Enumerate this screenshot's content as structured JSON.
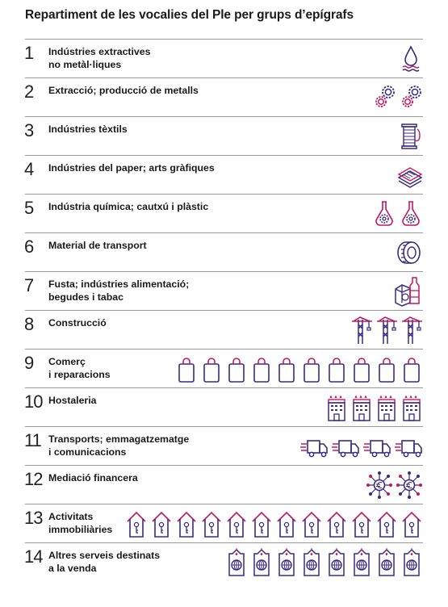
{
  "title": "Repartiment de les vocalies del Ple per grups d’epígrafs",
  "colors": {
    "primary": "#3b2a82",
    "accent": "#c2185b",
    "rule": "#9a9a9a",
    "text": "#1a1a1a"
  },
  "groups": [
    {
      "number": "1",
      "lines": [
        "Indústries extractives",
        "no metàl·liques"
      ],
      "icon": "water-drop-icon",
      "count": 1
    },
    {
      "number": "2",
      "lines": [
        "Extracció; producció de metalls"
      ],
      "icon": "gears-icon",
      "count": 2
    },
    {
      "number": "3",
      "lines": [
        "Indústries tèxtils"
      ],
      "icon": "thread-spool-icon",
      "count": 1
    },
    {
      "number": "4",
      "lines": [
        "Indústries del paper; arts gràfiques"
      ],
      "icon": "paper-stack-icon",
      "count": 1
    },
    {
      "number": "5",
      "lines": [
        "Indústria química; cautxú i plàstic"
      ],
      "icon": "flask-icon",
      "count": 2
    },
    {
      "number": "6",
      "lines": [
        "Material de transport"
      ],
      "icon": "tire-icon",
      "count": 1
    },
    {
      "number": "7",
      "lines": [
        "Fusta; indústries alimentació;",
        "begudes i tabac"
      ],
      "icon": "food-carton-icon",
      "count": 1
    },
    {
      "number": "8",
      "lines": [
        "Construcció"
      ],
      "icon": "crane-icon",
      "count": 3
    },
    {
      "number": "9",
      "lines": [
        "Comerç",
        "i reparacions"
      ],
      "icon": "shopping-bag-icon",
      "count": 10
    },
    {
      "number": "10",
      "lines": [
        "Hostaleria"
      ],
      "icon": "hotel-icon",
      "count": 4
    },
    {
      "number": "11",
      "lines": [
        "Transports; emmagatzematge",
        "i comunicacions"
      ],
      "icon": "truck-icon",
      "count": 4
    },
    {
      "number": "12",
      "lines": [
        "Mediació financera"
      ],
      "icon": "euro-network-icon",
      "count": 2
    },
    {
      "number": "13",
      "lines": [
        "Activitats",
        "immobiliàries"
      ],
      "icon": "house-key-icon",
      "count": 12
    },
    {
      "number": "14",
      "lines": [
        "Altres serveis destinats",
        "a la venda"
      ],
      "icon": "globe-tag-icon",
      "count": 8
    }
  ]
}
